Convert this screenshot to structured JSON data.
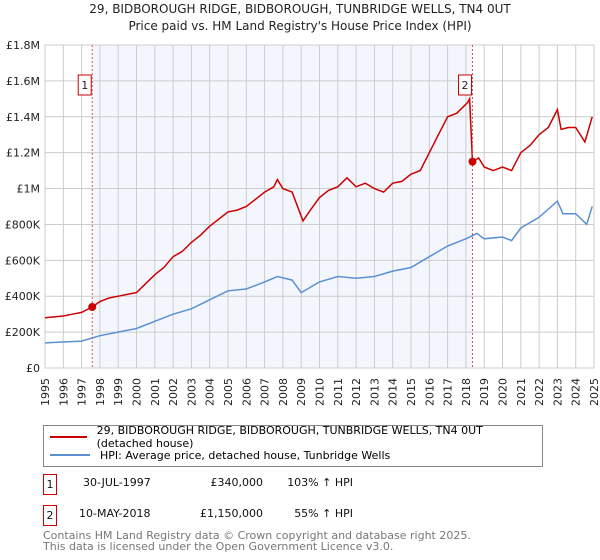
{
  "chart_data": {
    "type": "line",
    "title": "29, BIDBOROUGH RIDGE, BIDBOROUGH, TUNBRIDGE WELLS, TN4 0UT",
    "subtitle": "Price paid vs. HM Land Registry's House Price Index (HPI)",
    "xlim": [
      1995,
      2025
    ],
    "ylim": [
      0,
      1800000
    ],
    "y_ticks": [
      {
        "v": 0,
        "label": "£0"
      },
      {
        "v": 200000,
        "label": "£200K"
      },
      {
        "v": 400000,
        "label": "£400K"
      },
      {
        "v": 600000,
        "label": "£600K"
      },
      {
        "v": 800000,
        "label": "£800K"
      },
      {
        "v": 1000000,
        "label": "£1M"
      },
      {
        "v": 1200000,
        "label": "£1.2M"
      },
      {
        "v": 1400000,
        "label": "£1.4M"
      },
      {
        "v": 1600000,
        "label": "£1.6M"
      },
      {
        "v": 1800000,
        "label": "£1.8M"
      }
    ],
    "x_ticks": [
      "1995",
      "1996",
      "1997",
      "1998",
      "1999",
      "2000",
      "2001",
      "2002",
      "2003",
      "2004",
      "2005",
      "2006",
      "2007",
      "2008",
      "2009",
      "2010",
      "2011",
      "2012",
      "2013",
      "2014",
      "2015",
      "2016",
      "2017",
      "2018",
      "2019",
      "2020",
      "2021",
      "2022",
      "2023",
      "2024",
      "2025"
    ],
    "grid": true,
    "series": [
      {
        "name": "29, BIDBOROUGH RIDGE, BIDBOROUGH, TUNBRIDGE WELLS, TN4 0UT (detached house)",
        "color": "#cc0000",
        "x": [
          1995,
          1995.5,
          1996,
          1996.5,
          1997,
          1997.58,
          1998,
          1998.5,
          1999,
          1999.5,
          2000,
          2000.5,
          2001,
          2001.5,
          2002,
          2002.5,
          2003,
          2003.5,
          2004,
          2004.5,
          2005,
          2005.5,
          2006,
          2006.5,
          2007,
          2007.5,
          2007.7,
          2008,
          2008.5,
          2009.1,
          2009.5,
          2010,
          2010.5,
          2011,
          2011.5,
          2012,
          2012.5,
          2013,
          2013.5,
          2014,
          2014.5,
          2015,
          2015.5,
          2016,
          2016.5,
          2017,
          2017.5,
          2018.1,
          2018.2,
          2018.36,
          2018.7,
          2019,
          2019.5,
          2020,
          2020.5,
          2021,
          2021.5,
          2022,
          2022.5,
          2023,
          2023.2,
          2023.6,
          2024,
          2024.5,
          2024.9
        ],
        "y": [
          280000,
          285000,
          290000,
          300000,
          310000,
          340000,
          370000,
          390000,
          400000,
          410000,
          420000,
          470000,
          520000,
          560000,
          620000,
          650000,
          700000,
          740000,
          790000,
          830000,
          870000,
          880000,
          900000,
          940000,
          980000,
          1010000,
          1050000,
          1000000,
          980000,
          820000,
          880000,
          950000,
          990000,
          1010000,
          1060000,
          1010000,
          1030000,
          1000000,
          980000,
          1030000,
          1040000,
          1080000,
          1100000,
          1200000,
          1300000,
          1400000,
          1420000,
          1480000,
          1500000,
          1150000,
          1170000,
          1120000,
          1100000,
          1120000,
          1100000,
          1200000,
          1240000,
          1300000,
          1340000,
          1440000,
          1330000,
          1340000,
          1340000,
          1260000,
          1400000
        ]
      },
      {
        "name": "HPI: Average price, detached house, Tunbridge Wells",
        "color": "#5b8fd4",
        "x": [
          1995,
          1996,
          1997,
          1998,
          1999,
          2000,
          2001,
          2002,
          2003,
          2004,
          2005,
          2006,
          2007,
          2007.7,
          2008.5,
          2009,
          2010,
          2011,
          2012,
          2013,
          2014,
          2015,
          2016,
          2017,
          2018,
          2018.6,
          2019,
          2020,
          2020.5,
          2021,
          2022,
          2023,
          2023.3,
          2024,
          2024.6,
          2024.9
        ],
        "y": [
          140000,
          145000,
          150000,
          180000,
          200000,
          220000,
          260000,
          300000,
          330000,
          380000,
          430000,
          440000,
          480000,
          510000,
          490000,
          420000,
          480000,
          510000,
          500000,
          510000,
          540000,
          560000,
          620000,
          680000,
          720000,
          750000,
          720000,
          730000,
          710000,
          780000,
          840000,
          930000,
          860000,
          860000,
          800000,
          900000
        ]
      }
    ],
    "sales": [
      {
        "label": "1",
        "x": 1997.58,
        "y": 340000
      },
      {
        "label": "2",
        "x": 2018.36,
        "y": 1150000
      }
    ],
    "legend_position": "below"
  },
  "transactions": [
    {
      "num": "1",
      "date": "30-JUL-1997",
      "price": "£340,000",
      "hpi": "103% ↑ HPI"
    },
    {
      "num": "2",
      "date": "10-MAY-2018",
      "price": "£1,150,000",
      "hpi": "55% ↑ HPI"
    }
  ],
  "footer": {
    "line1": "Contains HM Land Registry data © Crown copyright and database right 2025.",
    "line2": "This data is licensed under the Open Government Licence v3.0."
  }
}
